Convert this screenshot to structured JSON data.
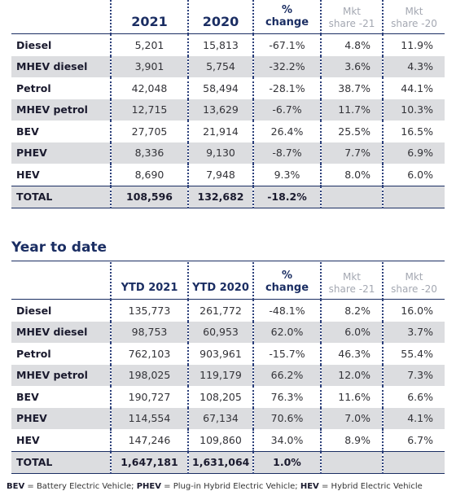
{
  "monthly": {
    "headers": {
      "col1": "2021",
      "col2": "2020",
      "change_line1": "%",
      "change_line2": "change",
      "share21_line1": "Mkt",
      "share21_line2": "share -21",
      "share20_line1": "Mkt",
      "share20_line2": "share -20"
    },
    "rows": [
      {
        "name": "Diesel",
        "v2021": "5,201",
        "v2020": "15,813",
        "change": "-67.1%",
        "share21": "4.8%",
        "share20": "11.9%"
      },
      {
        "name": "MHEV diesel",
        "v2021": "3,901",
        "v2020": "5,754",
        "change": "-32.2%",
        "share21": "3.6%",
        "share20": "4.3%"
      },
      {
        "name": "Petrol",
        "v2021": "42,048",
        "v2020": "58,494",
        "change": "-28.1%",
        "share21": "38.7%",
        "share20": "44.1%"
      },
      {
        "name": "MHEV petrol",
        "v2021": "12,715",
        "v2020": "13,629",
        "change": "-6.7%",
        "share21": "11.7%",
        "share20": "10.3%"
      },
      {
        "name": "BEV",
        "v2021": "27,705",
        "v2020": "21,914",
        "change": "26.4%",
        "share21": "25.5%",
        "share20": "16.5%"
      },
      {
        "name": "PHEV",
        "v2021": "8,336",
        "v2020": "9,130",
        "change": "-8.7%",
        "share21": "7.7%",
        "share20": "6.9%"
      },
      {
        "name": "HEV",
        "v2021": "8,690",
        "v2020": "7,948",
        "change": "9.3%",
        "share21": "8.0%",
        "share20": "6.0%"
      }
    ],
    "total": {
      "name": "TOTAL",
      "v2021": "108,596",
      "v2020": "132,682",
      "change": "-18.2%"
    }
  },
  "ytd": {
    "title": "Year to date",
    "headers": {
      "col1": "YTD 2021",
      "col2": "YTD 2020",
      "change_line1": "%",
      "change_line2": "change",
      "share21_line1": "Mkt",
      "share21_line2": "share -21",
      "share20_line1": "Mkt",
      "share20_line2": "share -20"
    },
    "rows": [
      {
        "name": "Diesel",
        "v2021": "135,773",
        "v2020": "261,772",
        "change": "-48.1%",
        "share21": "8.2%",
        "share20": "16.0%"
      },
      {
        "name": "MHEV diesel",
        "v2021": "98,753",
        "v2020": "60,953",
        "change": "62.0%",
        "share21": "6.0%",
        "share20": "3.7%"
      },
      {
        "name": "Petrol",
        "v2021": "762,103",
        "v2020": "903,961",
        "change": "-15.7%",
        "share21": "46.3%",
        "share20": "55.4%"
      },
      {
        "name": "MHEV petrol",
        "v2021": "198,025",
        "v2020": "119,179",
        "change": "66.2%",
        "share21": "12.0%",
        "share20": "7.3%"
      },
      {
        "name": "BEV",
        "v2021": "190,727",
        "v2020": "108,205",
        "change": "76.3%",
        "share21": "11.6%",
        "share20": "6.6%"
      },
      {
        "name": "PHEV",
        "v2021": "114,554",
        "v2020": "67,134",
        "change": "70.6%",
        "share21": "7.0%",
        "share20": "4.1%"
      },
      {
        "name": "HEV",
        "v2021": "147,246",
        "v2020": "109,860",
        "change": "34.0%",
        "share21": "8.9%",
        "share20": "6.7%"
      }
    ],
    "total": {
      "name": "TOTAL",
      "v2021": "1,647,181",
      "v2020": "1,631,064",
      "change": "1.0%"
    }
  },
  "footnote": {
    "bev_abbr": "BEV",
    "bev_text": " = Battery Electric Vehicle; ",
    "phev_abbr": "PHEV",
    "phev_text": " = Plug-in Hybrid Electric Vehicle; ",
    "hev_abbr": "HEV",
    "hev_text": " = Hybrid Electric Vehicle"
  }
}
